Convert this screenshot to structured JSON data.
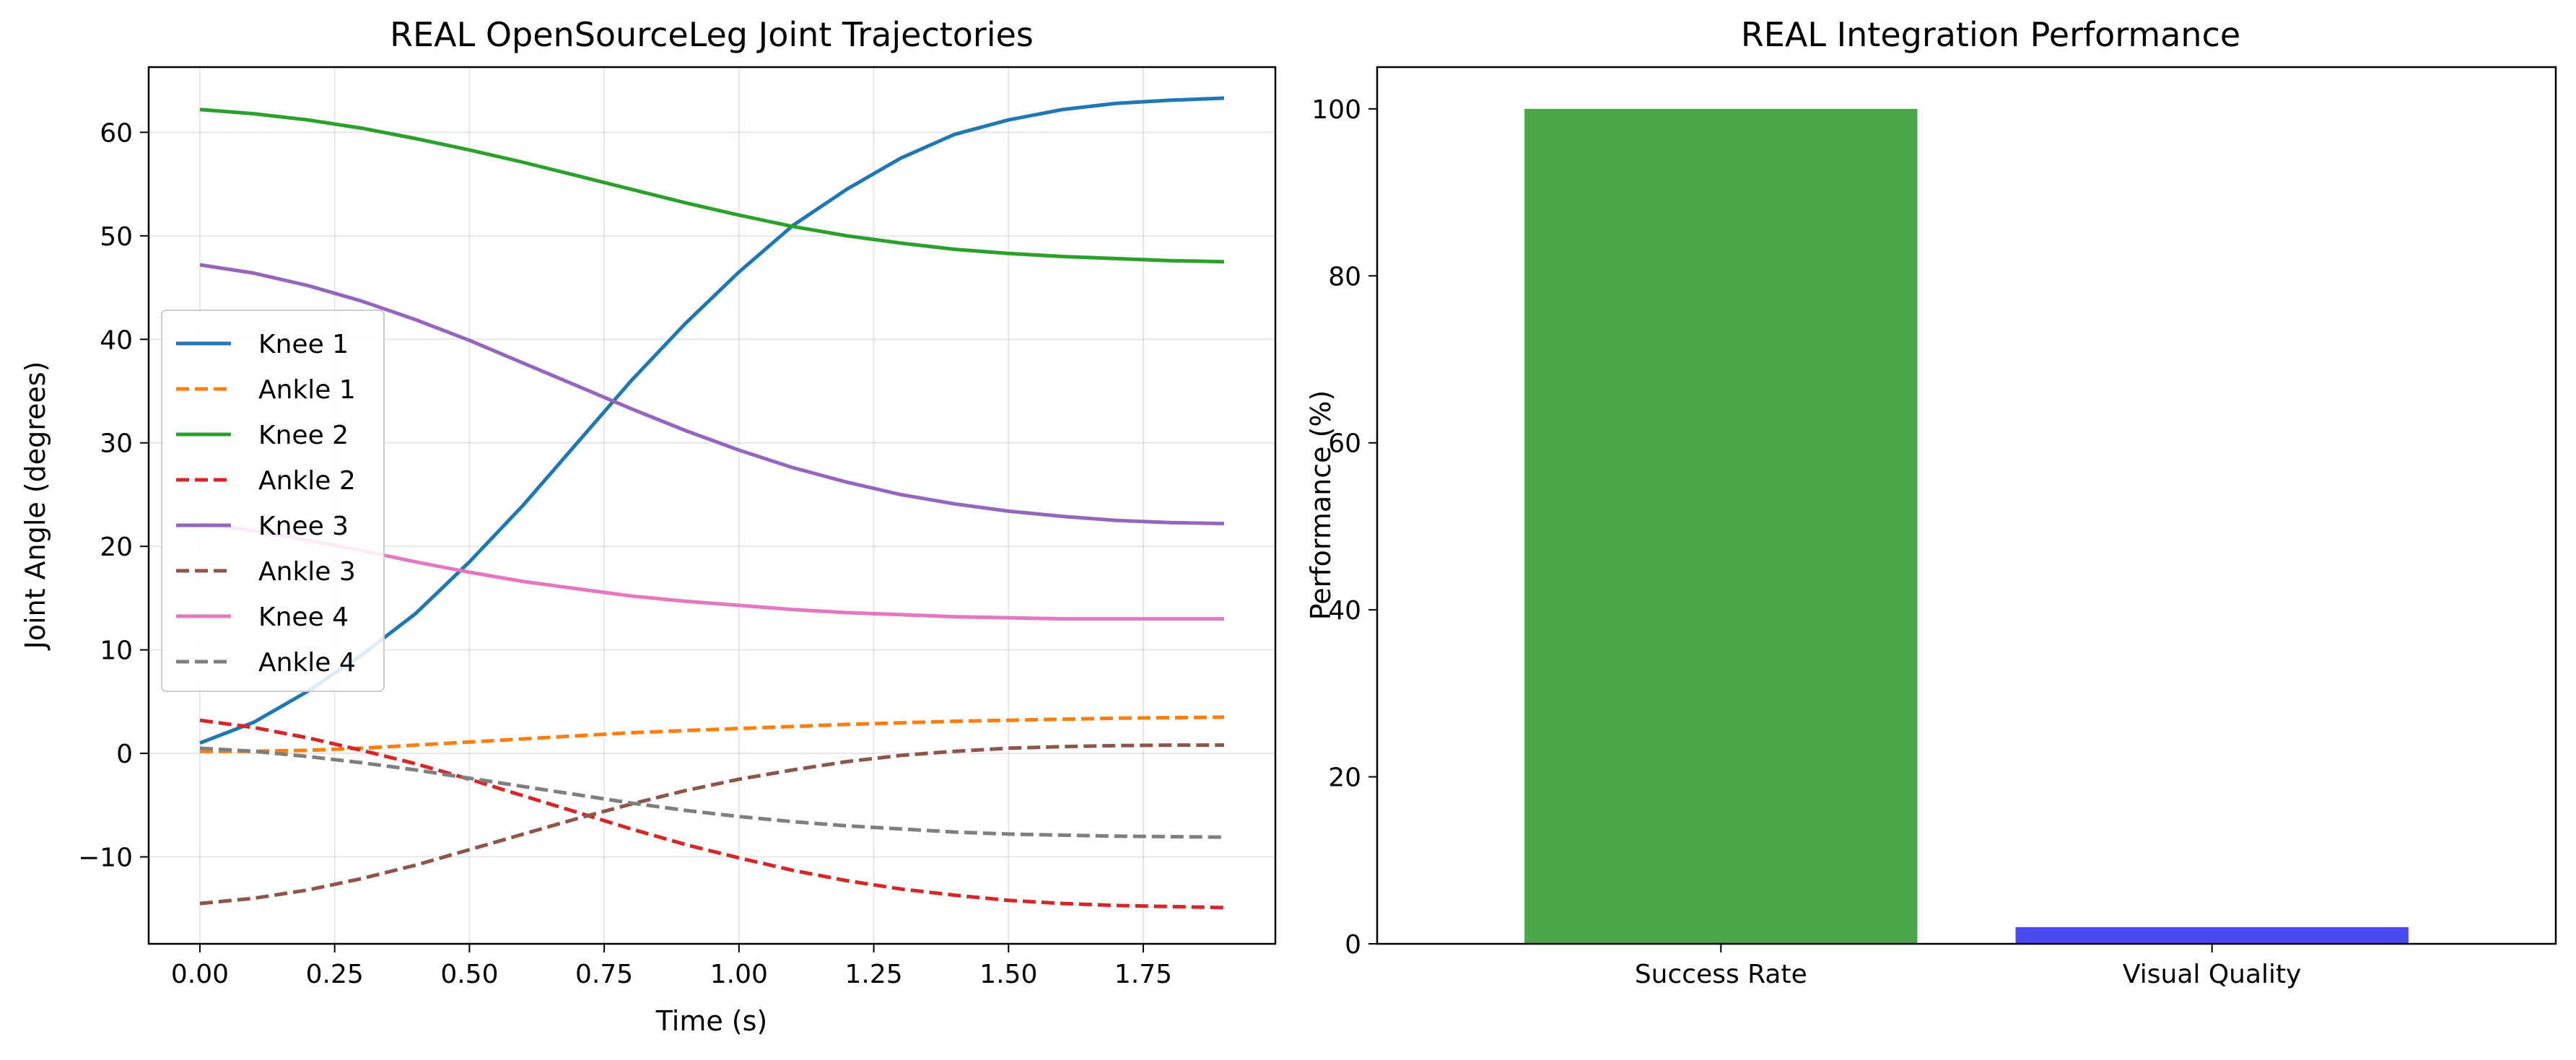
{
  "chart_data": [
    {
      "type": "line",
      "title": "REAL OpenSourceLeg Joint Trajectories",
      "xlabel": "Time (s)",
      "ylabel": "Joint Angle (degrees)",
      "xlim": [
        -0.095,
        1.995
      ],
      "ylim": [
        -18.4,
        66.3
      ],
      "xticks": [
        "0.00",
        "0.25",
        "0.50",
        "0.75",
        "1.00",
        "1.25",
        "1.50",
        "1.75"
      ],
      "yticks": [
        "−10",
        "0",
        "10",
        "20",
        "30",
        "40",
        "50",
        "60"
      ],
      "grid": true,
      "legend": "center-left",
      "x": [
        0.0,
        0.1,
        0.2,
        0.3,
        0.4,
        0.5,
        0.6,
        0.7,
        0.8,
        0.9,
        1.0,
        1.1,
        1.2,
        1.3,
        1.4,
        1.5,
        1.6,
        1.7,
        1.8,
        1.9
      ],
      "series": [
        {
          "name": "Knee 1",
          "color": "#1f77b4",
          "dash": "solid",
          "values": [
            1.0,
            3.0,
            6.0,
            9.5,
            13.5,
            18.5,
            24.0,
            30.0,
            36.0,
            41.5,
            46.5,
            51.0,
            54.5,
            57.5,
            59.8,
            61.2,
            62.2,
            62.8,
            63.1,
            63.3
          ]
        },
        {
          "name": "Ankle 1",
          "color": "#ff7f0e",
          "dash": "dashed",
          "values": [
            0.2,
            0.2,
            0.3,
            0.5,
            0.8,
            1.1,
            1.4,
            1.7,
            2.0,
            2.2,
            2.4,
            2.6,
            2.8,
            2.95,
            3.1,
            3.2,
            3.3,
            3.4,
            3.45,
            3.5
          ]
        },
        {
          "name": "Knee 2",
          "color": "#2ca02c",
          "dash": "solid",
          "values": [
            62.2,
            61.8,
            61.2,
            60.4,
            59.4,
            58.3,
            57.1,
            55.8,
            54.5,
            53.2,
            52.0,
            50.9,
            50.0,
            49.3,
            48.7,
            48.3,
            48.0,
            47.8,
            47.6,
            47.5
          ]
        },
        {
          "name": "Ankle 2",
          "color": "#d62728",
          "dash": "dashed",
          "values": [
            3.2,
            2.5,
            1.5,
            0.3,
            -1.0,
            -2.5,
            -4.1,
            -5.7,
            -7.3,
            -8.8,
            -10.1,
            -11.3,
            -12.3,
            -13.1,
            -13.7,
            -14.2,
            -14.5,
            -14.7,
            -14.8,
            -14.9
          ]
        },
        {
          "name": "Knee 3",
          "color": "#9467bd",
          "dash": "solid",
          "values": [
            47.2,
            46.4,
            45.2,
            43.7,
            41.9,
            39.9,
            37.7,
            35.5,
            33.3,
            31.2,
            29.3,
            27.6,
            26.2,
            25.0,
            24.1,
            23.4,
            22.9,
            22.5,
            22.3,
            22.2
          ]
        },
        {
          "name": "Ankle 3",
          "color": "#8c564b",
          "dash": "dashed",
          "values": [
            -14.5,
            -14.0,
            -13.2,
            -12.1,
            -10.8,
            -9.3,
            -7.8,
            -6.3,
            -4.9,
            -3.6,
            -2.5,
            -1.6,
            -0.8,
            -0.2,
            0.2,
            0.5,
            0.65,
            0.75,
            0.8,
            0.8
          ]
        },
        {
          "name": "Knee 4",
          "color": "#e377c2",
          "dash": "solid",
          "values": [
            22.2,
            21.5,
            20.6,
            19.6,
            18.5,
            17.5,
            16.6,
            15.9,
            15.2,
            14.7,
            14.3,
            13.9,
            13.6,
            13.4,
            13.2,
            13.1,
            13.0,
            13.0,
            13.0,
            13.0
          ]
        },
        {
          "name": "Ankle 4",
          "color": "#7f7f7f",
          "dash": "dashed",
          "values": [
            0.5,
            0.2,
            -0.3,
            -0.9,
            -1.6,
            -2.4,
            -3.2,
            -4.0,
            -4.8,
            -5.5,
            -6.1,
            -6.6,
            -7.0,
            -7.3,
            -7.6,
            -7.8,
            -7.9,
            -8.0,
            -8.05,
            -8.1
          ]
        }
      ]
    },
    {
      "type": "bar",
      "title": "REAL Integration Performance",
      "xlabel": "",
      "ylabel": "Performance (%)",
      "ylim": [
        0,
        105
      ],
      "yticks": [
        "0",
        "20",
        "40",
        "60",
        "80",
        "100"
      ],
      "grid": false,
      "categories": [
        "Success Rate",
        "Visual Quality"
      ],
      "values": [
        100,
        2
      ],
      "colors": [
        "#4ca64c",
        "#4a4af2"
      ]
    }
  ]
}
